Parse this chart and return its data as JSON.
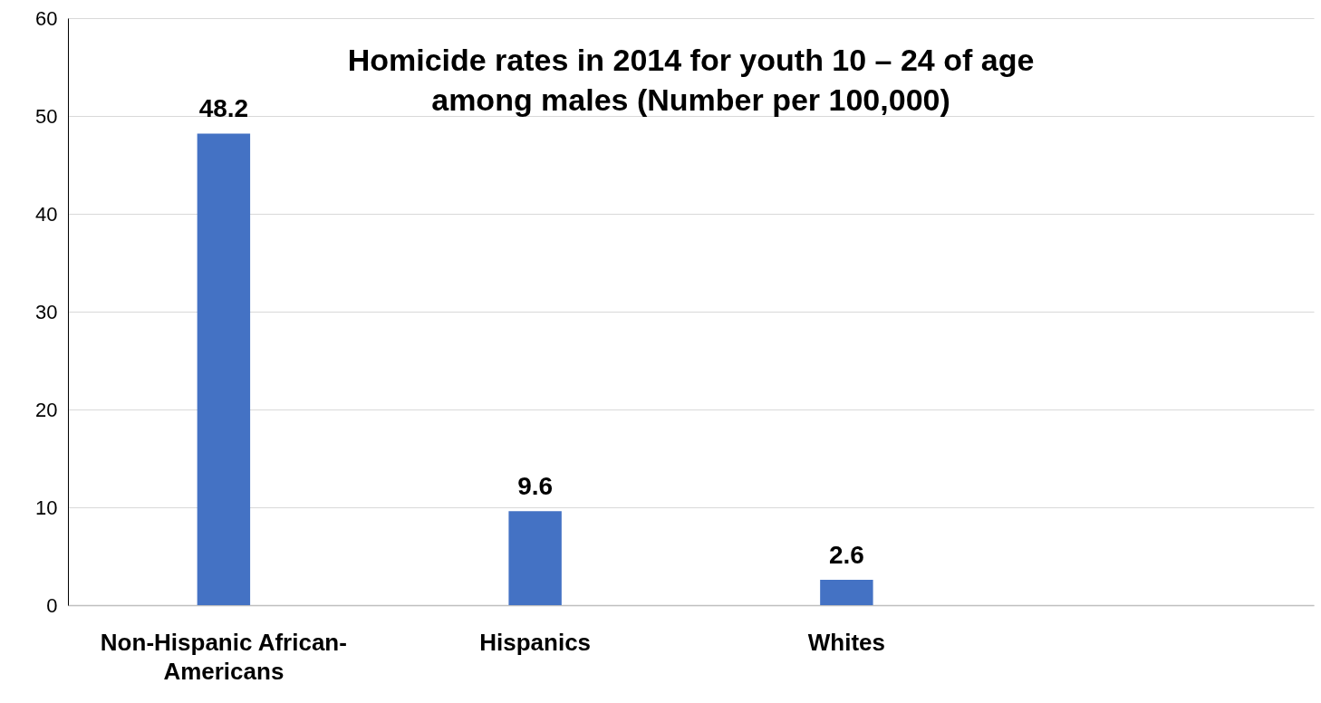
{
  "chart_data": {
    "type": "bar",
    "title": "Homicide rates in 2014 for youth 10 – 24 of age among males (Number per 100,000)",
    "categories": [
      "Non-Hispanic African-Americans",
      "Hispanics",
      "Whites",
      null
    ],
    "values": [
      48.2,
      9.6,
      2.6,
      null
    ],
    "color": "#4472c4",
    "ylim": [
      0,
      60
    ],
    "yticks": [
      0,
      10,
      20,
      30,
      40,
      50,
      60
    ],
    "grid": "y",
    "data_labels": true
  }
}
